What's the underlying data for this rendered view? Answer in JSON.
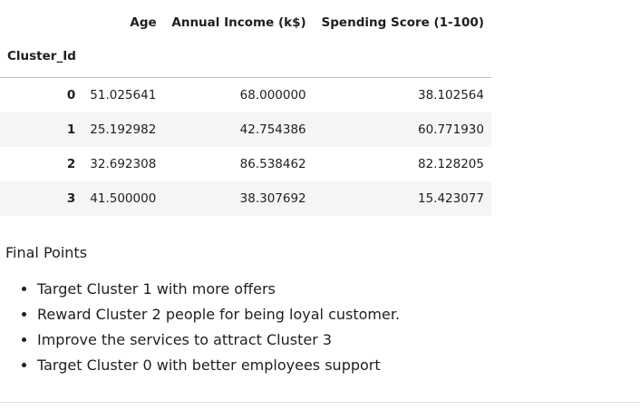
{
  "table": {
    "columns": [
      "Age",
      "Annual Income (k$)",
      "Spending Score (1-100)"
    ],
    "index_name": "Cluster_Id",
    "rows": [
      {
        "index": "0",
        "cells": [
          "51.025641",
          "68.000000",
          "38.102564"
        ]
      },
      {
        "index": "1",
        "cells": [
          "25.192982",
          "42.754386",
          "60.771930"
        ]
      },
      {
        "index": "2",
        "cells": [
          "32.692308",
          "86.538462",
          "82.128205"
        ]
      },
      {
        "index": "3",
        "cells": [
          "41.500000",
          "38.307692",
          "15.423077"
        ]
      }
    ]
  },
  "notes": {
    "title": "Final Points",
    "items": [
      "Target Cluster 1 with more offers",
      "Reward Cluster 2 people for being loyal customer.",
      "Improve the services to attract Cluster 3",
      "Target Cluster 0 with better employees support"
    ]
  }
}
